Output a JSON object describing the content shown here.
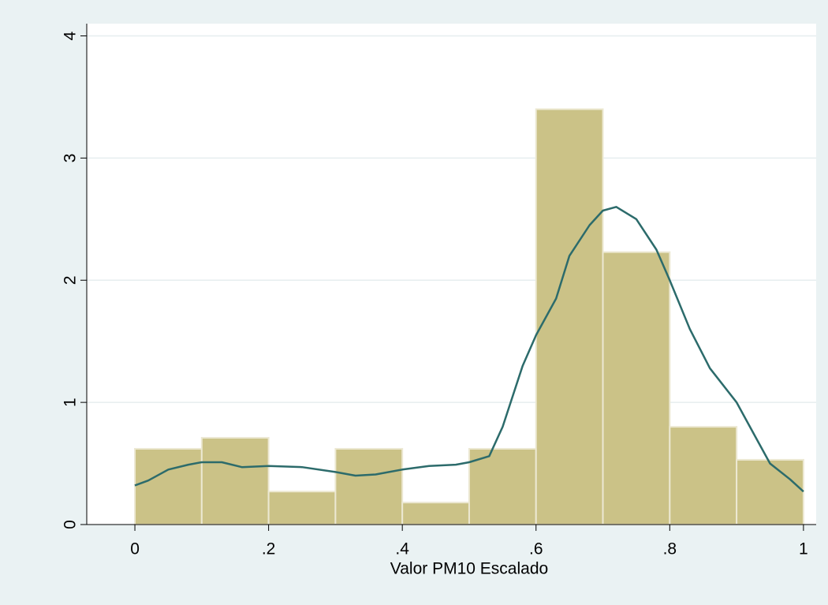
{
  "chart_data": {
    "type": "histogram",
    "xlabel": "Valor PM10 Escalado",
    "bins": [
      0,
      0.1,
      0.2,
      0.3,
      0.4,
      0.5,
      0.6,
      0.7,
      0.8,
      0.9,
      1
    ],
    "values": [
      0.62,
      0.71,
      0.27,
      0.62,
      0.18,
      0.62,
      3.4,
      2.23,
      0.8,
      0.53
    ],
    "color": "#cbc287",
    "edgecolor": "#ece8d2",
    "density": {
      "x": [
        0,
        0.02,
        0.05,
        0.08,
        0.1,
        0.13,
        0.16,
        0.2,
        0.25,
        0.3,
        0.33,
        0.36,
        0.4,
        0.44,
        0.48,
        0.5,
        0.53,
        0.55,
        0.58,
        0.6,
        0.63,
        0.65,
        0.68,
        0.7,
        0.72,
        0.75,
        0.78,
        0.8,
        0.83,
        0.86,
        0.9,
        0.93,
        0.95,
        0.98,
        1
      ],
      "values": [
        0.32,
        0.36,
        0.45,
        0.49,
        0.51,
        0.51,
        0.47,
        0.48,
        0.47,
        0.43,
        0.4,
        0.41,
        0.45,
        0.48,
        0.49,
        0.51,
        0.56,
        0.8,
        1.3,
        1.55,
        1.85,
        2.2,
        2.45,
        2.57,
        2.6,
        2.5,
        2.25,
        2.0,
        1.6,
        1.28,
        1.0,
        0.7,
        0.5,
        0.37,
        0.27
      ],
      "color": "#2c6b6b"
    },
    "xlim": [
      -0.072,
      1.019
    ],
    "ylim": [
      0,
      4.1
    ],
    "xticks": [
      0,
      {
        "value": 0.2,
        "label": ".2"
      },
      {
        "value": 0.4,
        "label": ".4"
      },
      {
        "value": 0.6,
        "label": ".6"
      },
      {
        "value": 0.8,
        "label": ".8"
      },
      1
    ],
    "yticks": [
      0,
      1,
      2,
      3,
      4
    ],
    "grid": true
  }
}
